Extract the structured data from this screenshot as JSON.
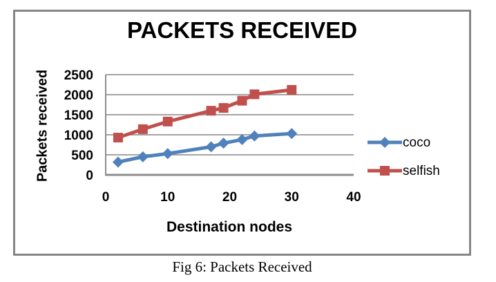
{
  "figure": {
    "caption": "Fig 6: Packets Received"
  },
  "chart_data": {
    "type": "line",
    "title": "PACKETS RECEIVED",
    "xlabel": "Destination nodes",
    "ylabel": "Packets received",
    "x": [
      2,
      6,
      10,
      17,
      19,
      22,
      24,
      30
    ],
    "series": [
      {
        "name": "coco",
        "marker": "diamond",
        "color": "#4F81BD",
        "values": [
          320,
          450,
          530,
          700,
          790,
          880,
          970,
          1030
        ]
      },
      {
        "name": "selfish",
        "marker": "square",
        "color": "#C0504D",
        "values": [
          930,
          1140,
          1330,
          1600,
          1670,
          1850,
          2010,
          2120
        ]
      }
    ],
    "xlim": [
      0,
      40
    ],
    "ylim": [
      0,
      2500
    ],
    "x_ticks": [
      0,
      10,
      20,
      30,
      40
    ],
    "y_ticks": [
      0,
      500,
      1000,
      1500,
      2000,
      2500
    ],
    "grid": "horizontal",
    "legend_position": "right",
    "colors": {
      "gridline": "#a3a3a3",
      "axis": "#8c8c8c",
      "frame_border": "#868686",
      "text": "#000000",
      "background": "#ffffff"
    }
  }
}
